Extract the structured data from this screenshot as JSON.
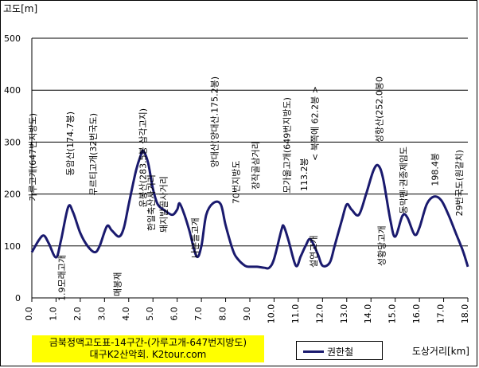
{
  "chart_data": {
    "type": "line",
    "title": "",
    "ylabel": "고도[m]",
    "xlabel": "도상거리[km]",
    "xlim": [
      0,
      18
    ],
    "ylim": [
      0,
      500
    ],
    "y_ticks": [
      0,
      100,
      200,
      300,
      400,
      500
    ],
    "x_ticks": [
      "0.0",
      "1.0",
      "2.0",
      "3.0",
      "4.0",
      "5.0",
      "6.0",
      "7.0",
      "8.0",
      "9.0",
      "10.0",
      "11.0",
      "12.0",
      "13.0",
      "14.0",
      "15.0",
      "16.0",
      "17.0",
      "18.0"
    ],
    "grid": "horizontal",
    "legend_position": "bottom-right",
    "color": "#1a1a6e",
    "series": [
      {
        "name": "권한철",
        "points": [
          [
            0.0,
            88
          ],
          [
            0.3,
            112
          ],
          [
            0.5,
            120
          ],
          [
            0.7,
            105
          ],
          [
            1.0,
            78
          ],
          [
            1.2,
            110
          ],
          [
            1.5,
            175
          ],
          [
            1.7,
            165
          ],
          [
            2.0,
            125
          ],
          [
            2.3,
            100
          ],
          [
            2.6,
            88
          ],
          [
            2.8,
            100
          ],
          [
            3.1,
            138
          ],
          [
            3.3,
            130
          ],
          [
            3.6,
            118
          ],
          [
            3.8,
            135
          ],
          [
            4.0,
            180
          ],
          [
            4.3,
            245
          ],
          [
            4.5,
            275
          ],
          [
            4.6,
            283
          ],
          [
            4.8,
            260
          ],
          [
            5.0,
            210
          ],
          [
            5.2,
            180
          ],
          [
            5.5,
            168
          ],
          [
            5.8,
            160
          ],
          [
            6.0,
            170
          ],
          [
            6.1,
            182
          ],
          [
            6.3,
            160
          ],
          [
            6.5,
            130
          ],
          [
            6.8,
            80
          ],
          [
            7.0,
            100
          ],
          [
            7.2,
            160
          ],
          [
            7.5,
            183
          ],
          [
            7.8,
            180
          ],
          [
            8.0,
            140
          ],
          [
            8.3,
            92
          ],
          [
            8.5,
            75
          ],
          [
            8.8,
            62
          ],
          [
            9.0,
            60
          ],
          [
            9.3,
            60
          ],
          [
            9.6,
            58
          ],
          [
            9.8,
            58
          ],
          [
            10.0,
            75
          ],
          [
            10.3,
            130
          ],
          [
            10.4,
            138
          ],
          [
            10.6,
            110
          ],
          [
            10.9,
            62
          ],
          [
            11.1,
            80
          ],
          [
            11.3,
            100
          ],
          [
            11.5,
            113
          ],
          [
            11.8,
            85
          ],
          [
            12.0,
            62
          ],
          [
            12.3,
            68
          ],
          [
            12.5,
            100
          ],
          [
            12.8,
            150
          ],
          [
            13.0,
            180
          ],
          [
            13.2,
            170
          ],
          [
            13.5,
            160
          ],
          [
            13.8,
            200
          ],
          [
            14.1,
            245
          ],
          [
            14.3,
            255
          ],
          [
            14.5,
            230
          ],
          [
            14.8,
            150
          ],
          [
            15.0,
            118
          ],
          [
            15.3,
            158
          ],
          [
            15.5,
            155
          ],
          [
            15.8,
            122
          ],
          [
            16.0,
            135
          ],
          [
            16.3,
            180
          ],
          [
            16.6,
            195
          ],
          [
            16.9,
            188
          ],
          [
            17.2,
            160
          ],
          [
            17.5,
            125
          ],
          [
            17.8,
            90
          ],
          [
            18.0,
            60
          ]
        ]
      }
    ],
    "annotations": [
      {
        "x": 0.0,
        "text": "가루고개(647번지방도)"
      },
      {
        "x": 1.2,
        "text": "1.9모래고개"
      },
      {
        "x": 1.55,
        "text": "동암산(174.7봉)"
      },
      {
        "x": 2.5,
        "text": "무르티고개(32번국도)"
      },
      {
        "x": 3.5,
        "text": "매봉재"
      },
      {
        "x": 4.55,
        "text": "운봉산(283.5봉 삼각고지)"
      },
      {
        "x": 4.9,
        "text": "한일축산사거리"
      },
      {
        "x": 5.4,
        "text": "돼지발골사거리"
      },
      {
        "x": 6.7,
        "text": "나븐들고개"
      },
      {
        "x": 7.5,
        "text": "양대산(양대산.175.2봉)"
      },
      {
        "x": 8.4,
        "text": "70번지방도"
      },
      {
        "x": 9.2,
        "text": "장작골삼거리"
      },
      {
        "x": 10.5,
        "text": "모가울고개(649번지방도)"
      },
      {
        "x": 11.2,
        "text": "113.2봉"
      },
      {
        "x": 11.6,
        "text": "설연고개"
      },
      {
        "x": 11.65,
        "text": "< 북쪽에 62.2봉 >"
      },
      {
        "x": 14.3,
        "text": "성항산(252.0봉0"
      },
      {
        "x": 14.4,
        "text": "성황당고개"
      },
      {
        "x": 15.3,
        "text": "동막펜·권종제임도"
      },
      {
        "x": 16.6,
        "text": "198.4봉"
      },
      {
        "x": 17.6,
        "text": "29번국도(원갈치)"
      }
    ]
  },
  "caption": {
    "line1": "금북정맥고도표-14구간-(가루고개-647번지방도)",
    "line2": "대구K2산악회. K2tour.com"
  }
}
